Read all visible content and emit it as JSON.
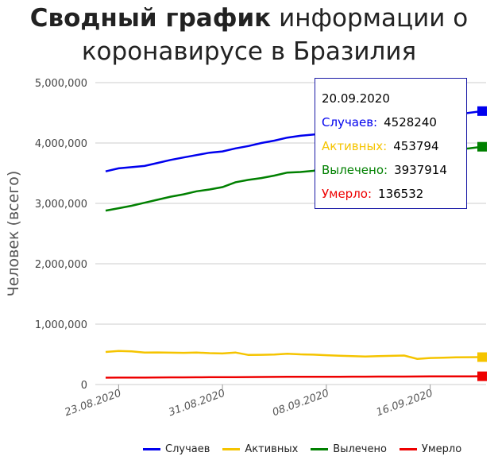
{
  "title": {
    "bold": "Сводный график",
    "rest_line1": "информации о",
    "line2": "коронавирусе в Бразилия"
  },
  "chart_data": {
    "type": "line",
    "ylabel": "Человек (всего)",
    "xlabel": "",
    "ylim": [
      0,
      5000000
    ],
    "y_ticks": [
      "0",
      "1,000,000",
      "2,000,000",
      "3,000,000",
      "4,000,000",
      "5,000,000"
    ],
    "x_ticks": [
      "23.08.2020",
      "31.08.2020",
      "08.09.2020",
      "16.09.2020"
    ],
    "x": [
      "22.08.2020",
      "23.08.2020",
      "24.08.2020",
      "25.08.2020",
      "26.08.2020",
      "27.08.2020",
      "28.08.2020",
      "29.08.2020",
      "30.08.2020",
      "31.08.2020",
      "01.09.2020",
      "02.09.2020",
      "03.09.2020",
      "04.09.2020",
      "05.09.2020",
      "06.09.2020",
      "07.09.2020",
      "08.09.2020",
      "09.09.2020",
      "10.09.2020",
      "11.09.2020",
      "12.09.2020",
      "13.09.2020",
      "14.09.2020",
      "15.09.2020",
      "16.09.2020",
      "17.09.2020",
      "18.09.2020",
      "19.09.2020",
      "20.09.2020"
    ],
    "grid": true,
    "legend_position": "bottom",
    "series": [
      {
        "name": "Случаев",
        "color": "#0000ee",
        "values": [
          3530000,
          3580000,
          3600000,
          3620000,
          3670000,
          3720000,
          3760000,
          3800000,
          3840000,
          3860000,
          3910000,
          3950000,
          4000000,
          4040000,
          4090000,
          4120000,
          4140000,
          4160000,
          4200000,
          4240000,
          4280000,
          4320000,
          4345000,
          4360000,
          4380000,
          4420000,
          4450000,
          4470000,
          4500000,
          4528240
        ]
      },
      {
        "name": "Активных",
        "color": "#f5c400",
        "values": [
          540000,
          555000,
          550000,
          530000,
          532000,
          528000,
          525000,
          530000,
          520000,
          515000,
          530000,
          490000,
          492000,
          498000,
          510000,
          500000,
          495000,
          485000,
          478000,
          470000,
          465000,
          470000,
          475000,
          480000,
          425000,
          440000,
          445000,
          450000,
          452000,
          453794
        ]
      },
      {
        "name": "Вылечено",
        "color": "#008000",
        "values": [
          2880000,
          2920000,
          2960000,
          3010000,
          3060000,
          3110000,
          3150000,
          3200000,
          3230000,
          3270000,
          3350000,
          3390000,
          3420000,
          3460000,
          3510000,
          3520000,
          3540000,
          3580000,
          3620000,
          3660000,
          3700000,
          3740000,
          3770000,
          3800000,
          3830000,
          3850000,
          3870000,
          3890000,
          3910000,
          3937914
        ]
      },
      {
        "name": "Умерло",
        "color": "#ee0000",
        "values": [
          113000,
          114000,
          115000,
          116000,
          117000,
          118000,
          119000,
          120000,
          121000,
          122000,
          123000,
          124000,
          125000,
          126000,
          127000,
          127500,
          128000,
          128500,
          129000,
          130000,
          130500,
          131000,
          131500,
          132000,
          133000,
          134000,
          134500,
          135000,
          136000,
          136532
        ]
      }
    ]
  },
  "tooltip": {
    "date": "20.09.2020",
    "cases_label": "Случаев:",
    "cases_value": "4528240",
    "active_label": "Активных:",
    "active_value": "453794",
    "recovered_label": "Вылечено:",
    "recovered_value": "3937914",
    "deaths_label": "Умерло:",
    "deaths_value": "136532"
  },
  "legend": {
    "cases": "Случаев",
    "active": "Активных",
    "recovered": "Вылечено",
    "deaths": "Умерло"
  }
}
